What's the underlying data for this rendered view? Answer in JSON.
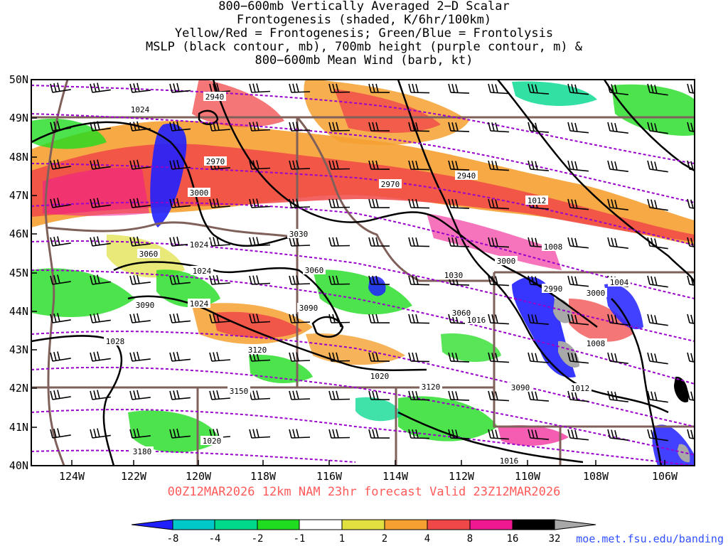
{
  "title_lines": [
    "800−600mb Vertically Averaged 2−D Scalar",
    "Frontogenesis (shaded, K/6hr/100km)",
    "Yellow/Red = Frontogenesis;  Green/Blue = Frontolysis",
    "MSLP (black contour, mb), 700mb height (purple contour, m) &",
    "800−600mb Mean Wind (barb, kt)"
  ],
  "valid_line": "00Z12MAR2026  12km NAM 23hr forecast Valid 23Z12MAR2026",
  "source_url": "moe.met.fsu.edu/banding",
  "map": {
    "lat_labels": [
      "50N",
      "49N",
      "48N",
      "47N",
      "46N",
      "45N",
      "44N",
      "43N",
      "42N",
      "41N",
      "40N"
    ],
    "lon_labels": [
      "124W",
      "122W",
      "120W",
      "118W",
      "116W",
      "114W",
      "112W",
      "110W",
      "108W",
      "106W"
    ],
    "mslp_labels": [
      "1024",
      "1024",
      "1024",
      "1024",
      "1028",
      "1016",
      "1012",
      "1008",
      "1004",
      "1008",
      "1012",
      "1016",
      "1020",
      "1020",
      "1030"
    ],
    "height_labels": [
      "2940",
      "2970",
      "3000",
      "3060",
      "3090",
      "3120",
      "3150",
      "3180",
      "3060",
      "3090",
      "3120",
      "2970",
      "2940",
      "3000",
      "2990",
      "3000",
      "3060",
      "3090",
      "3030"
    ]
  },
  "colorbar": {
    "labels": [
      "-8",
      "-4",
      "-2",
      "-1",
      "1",
      "2",
      "4",
      "8",
      "16",
      "32"
    ],
    "colors": [
      "#2020ff",
      "#00c8c8",
      "#00d88c",
      "#20dc20",
      "#ffffff",
      "#e0e040",
      "#f5a030",
      "#f04848",
      "#f01890",
      "#000000",
      "#a8a8a8"
    ]
  },
  "colors": {
    "valid_text": "#ff5a5a",
    "url_text": "#3050ff",
    "mslp_contour": "#000000",
    "height_contour": "#9900cc",
    "borders": "#80605a"
  }
}
